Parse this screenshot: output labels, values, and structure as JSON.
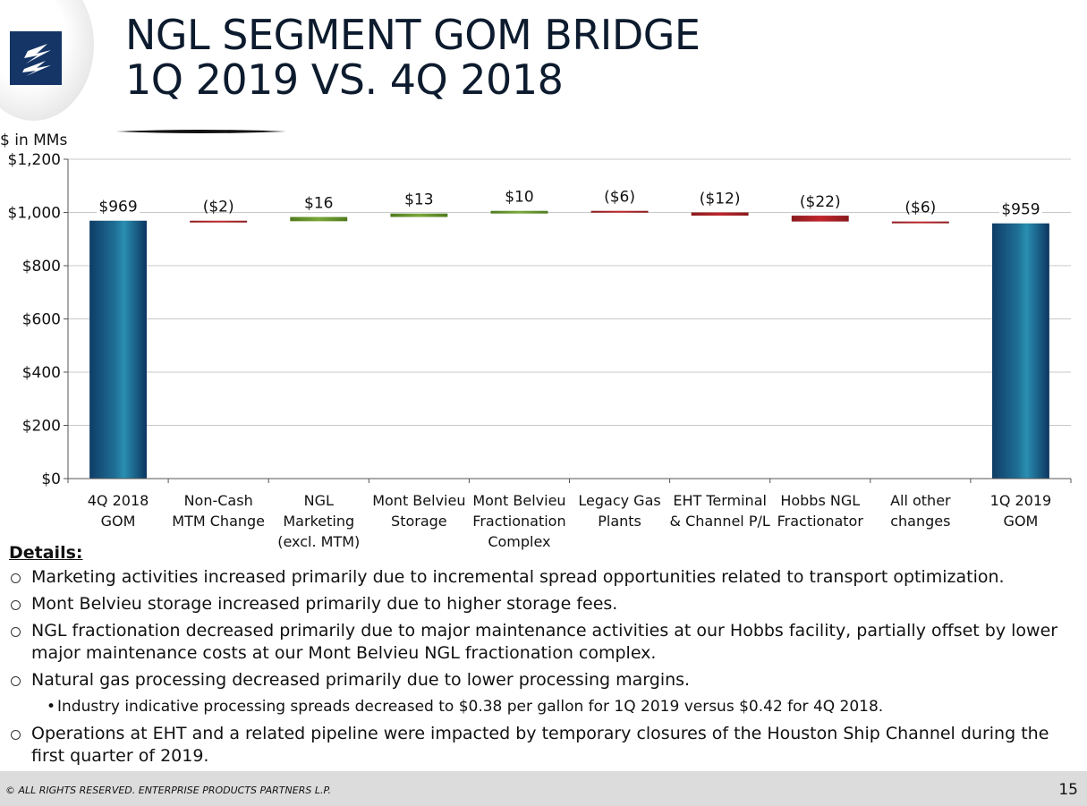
{
  "slide": {
    "title_line1": "NGL SEGMENT GOM BRIDGE",
    "title_line2": "1Q 2019 VS. 4Q 2018",
    "logo_icon": "enterprise-logo-icon",
    "page_number": "15",
    "copyright": "© ALL RIGHTS RESERVED. ENTERPRISE PRODUCTS PARTNERS L.P."
  },
  "chart_data": {
    "type": "bar",
    "subtype": "waterfall",
    "ylabel": "$ in MMs",
    "ylim": [
      0,
      1200
    ],
    "yticks": [
      0,
      200,
      400,
      600,
      800,
      1000,
      1200
    ],
    "ytick_labels": [
      "$0",
      "$200",
      "$400",
      "$600",
      "$800",
      "$1,000",
      "$1,200"
    ],
    "grid": true,
    "categories": [
      [
        "4Q 2018",
        "GOM"
      ],
      [
        "Non-Cash",
        "MTM Change"
      ],
      [
        "NGL",
        "Marketing",
        "(excl. MTM)"
      ],
      [
        "Mont Belvieu",
        "Storage"
      ],
      [
        "Mont Belvieu",
        "Fractionation",
        "Complex"
      ],
      [
        "Legacy Gas",
        "Plants"
      ],
      [
        "EHT Terminal",
        "& Channel P/L"
      ],
      [
        "Hobbs NGL",
        "Fractionator"
      ],
      [
        "All other",
        "changes"
      ],
      [
        "1Q 2019",
        "GOM"
      ]
    ],
    "kinds": [
      "total",
      "delta",
      "delta",
      "delta",
      "delta",
      "delta",
      "delta",
      "delta",
      "delta",
      "total"
    ],
    "values": [
      969,
      -2,
      16,
      13,
      10,
      -6,
      -12,
      -22,
      -6,
      959
    ],
    "data_labels": [
      "$969",
      "($2)",
      "$16",
      "$13",
      "$10",
      "($6)",
      "($12)",
      "($22)",
      "($6)",
      "$959"
    ],
    "colors": {
      "total": "#1f6f96",
      "increase": "#7aa83a",
      "decrease": "#c0262c",
      "grid": "#c8c8c8"
    }
  },
  "details": {
    "heading": "Details:",
    "bullets": [
      {
        "level": 1,
        "text": "Marketing activities increased primarily due to incremental spread opportunities related to transport optimization."
      },
      {
        "level": 1,
        "text": "Mont Belvieu storage increased primarily due to higher storage fees."
      },
      {
        "level": 1,
        "text": "NGL fractionation decreased primarily due to major maintenance activities at our Hobbs facility, partially offset by lower major maintenance costs at our Mont Belvieu NGL fractionation complex."
      },
      {
        "level": 1,
        "text": "Natural gas processing decreased primarily due to lower processing margins."
      },
      {
        "level": 2,
        "text": "Industry indicative processing spreads decreased to $0.38 per gallon for 1Q 2019 versus $0.42 for 4Q 2018."
      },
      {
        "level": 1,
        "text": "Operations at EHT and a related pipeline were impacted by temporary closures of the Houston Ship Channel during the first quarter of 2019."
      }
    ]
  }
}
